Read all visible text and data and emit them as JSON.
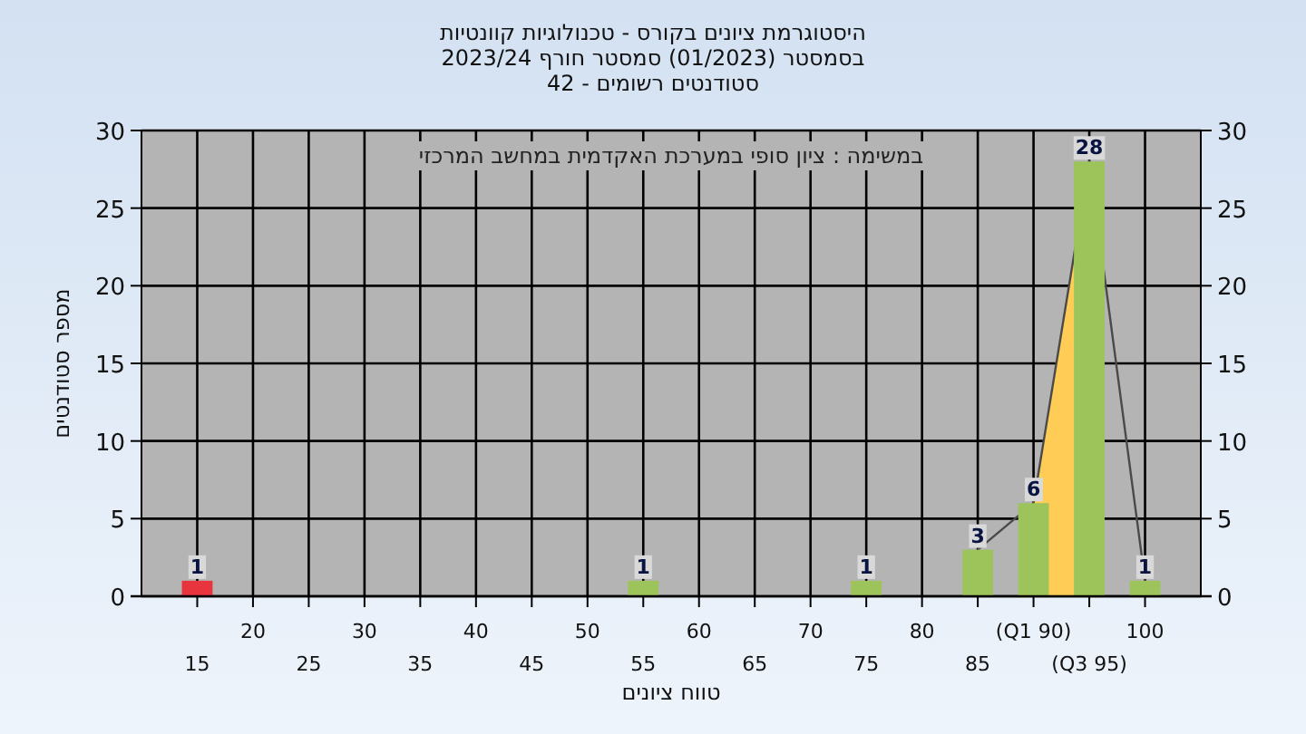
{
  "chart_data": {
    "type": "bar",
    "title": "היסטוגרמת ציונים בקורס - טכנולוגיות קוונטיות",
    "subtitle": "בסמסטר  (01/2023)  סמסטר חורף 2023/24\nסטודנטים רשומים - 42",
    "xlabel": "טווח ציונים",
    "ylabel": "מספר סטודנטים",
    "annotations": [
      "במשימה : ציון סופי במערכת האקדמית במחשב המרכזי"
    ],
    "categories": [
      "15",
      "20",
      "25",
      "30",
      "35",
      "40",
      "45",
      "50",
      "55",
      "60",
      "65",
      "70",
      "75",
      "80",
      "85",
      "(Q1 90)",
      "(Q3 95)",
      "100"
    ],
    "series": [
      {
        "type": "area",
        "color": "#ffcc55",
        "values": [
          null,
          null,
          null,
          null,
          null,
          null,
          null,
          null,
          null,
          null,
          null,
          null,
          null,
          null,
          null,
          6,
          28,
          null
        ]
      },
      {
        "type": "line",
        "color": "#4a4a4a",
        "values": [
          null,
          null,
          null,
          null,
          null,
          null,
          null,
          null,
          null,
          null,
          null,
          null,
          null,
          null,
          3,
          6,
          28,
          1
        ]
      },
      {
        "colors": [
          "#e8343c",
          "#9dc45a",
          "#9dc45a",
          "#9dc45a",
          "#9dc45a",
          "#9dc45a",
          "#9dc45a",
          "#9dc45a",
          "#9dc45a",
          "#9dc45a",
          "#9dc45a",
          "#9dc45a",
          "#9dc45a",
          "#9dc45a",
          "#9dc45a",
          "#9dc45a",
          "#9dc45a",
          "#9dc45a"
        ],
        "values": [
          1,
          0,
          0,
          0,
          0,
          0,
          0,
          0,
          1,
          0,
          0,
          0,
          1,
          0,
          3,
          6,
          28,
          1
        ],
        "value_labels": [
          "1",
          null,
          null,
          null,
          null,
          null,
          null,
          null,
          "1",
          null,
          null,
          null,
          "1",
          null,
          "3",
          "6",
          "28",
          "1"
        ]
      }
    ],
    "ylim": [
      0,
      30
    ],
    "yticks": [
      0,
      5,
      10,
      15,
      20,
      25,
      30
    ],
    "y2lim": [
      0,
      30
    ],
    "y2ticks": [
      0,
      5,
      10,
      15,
      20,
      25,
      30
    ],
    "grid": true
  }
}
